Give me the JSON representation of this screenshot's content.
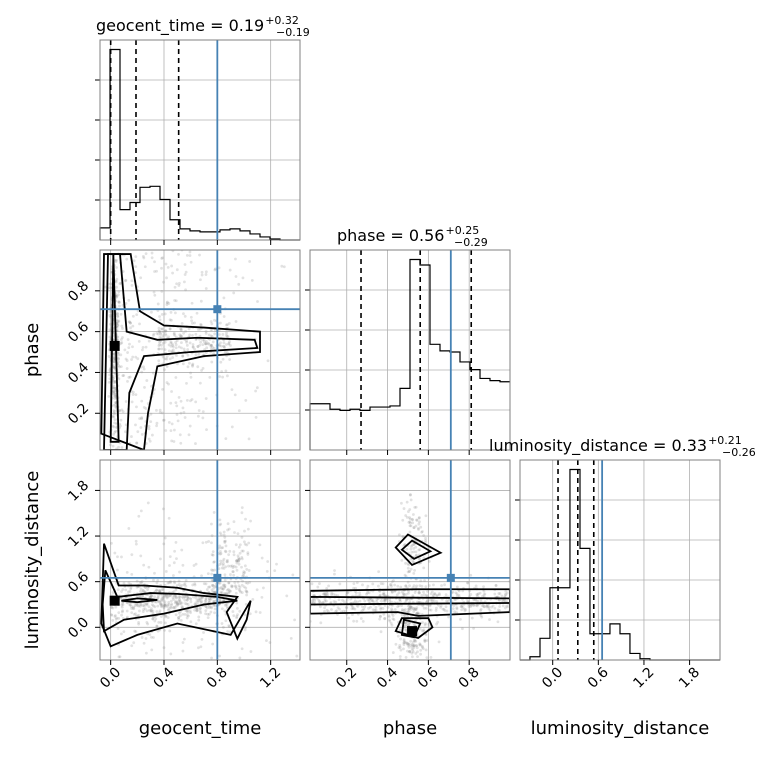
{
  "chart_data": {
    "type": "corner",
    "parameters": [
      "geocent_time",
      "phase",
      "luminosity_distance"
    ],
    "axis_labels": [
      "geocent_time",
      "phase",
      "luminosity_distance"
    ],
    "ranges": {
      "geocent_time": [
        -0.08,
        1.42
      ],
      "phase": [
        0.02,
        1.0
      ],
      "luminosity_distance": [
        -0.43,
        2.2
      ]
    },
    "ticks": {
      "geocent_time": [
        "0.0",
        "0.4",
        "0.8",
        "1.2"
      ],
      "phase": [
        "0.2",
        "0.4",
        "0.6",
        "0.8"
      ],
      "luminosity_distance": [
        "0.0",
        "0.6",
        "1.2",
        "1.8"
      ]
    },
    "tick_values": {
      "geocent_time": [
        0.0,
        0.4,
        0.8,
        1.2
      ],
      "phase": [
        0.2,
        0.4,
        0.6,
        0.8
      ],
      "luminosity_distance": [
        0.0,
        0.6,
        1.2,
        1.8
      ]
    },
    "titles": [
      {
        "param": "geocent_time",
        "text": "geocent_time = 0.19",
        "plus": "+0.32",
        "minus": "−0.19"
      },
      {
        "param": "phase",
        "text": "phase = 0.56",
        "plus": "+0.25",
        "minus": "−0.29"
      },
      {
        "param": "luminosity_distance",
        "text": "luminosity_distance = 0.33",
        "plus": "+0.21",
        "minus": "−0.26"
      }
    ],
    "truths": {
      "geocent_time": 0.8,
      "phase": 0.71,
      "luminosity_distance": 0.65
    },
    "quantiles": {
      "geocent_time": [
        0.0,
        0.19,
        0.51
      ],
      "phase": [
        0.27,
        0.56,
        0.81
      ],
      "luminosity_distance": [
        0.07,
        0.33,
        0.54
      ]
    },
    "histograms": {
      "geocent_time": {
        "bin_edges": [
          -0.08,
          -0.005,
          0.07,
          0.145,
          0.22,
          0.295,
          0.37,
          0.445,
          0.52,
          0.595,
          0.67,
          0.745,
          0.82,
          0.895,
          0.97,
          1.045,
          1.12,
          1.195,
          1.27,
          1.345,
          1.42
        ],
        "counts": [
          12,
          188,
          30,
          37,
          52,
          53,
          40,
          20,
          11,
          9,
          8,
          8,
          10,
          11,
          9,
          6,
          3,
          1,
          0,
          0
        ]
      },
      "phase": {
        "bin_edges": [
          0.02,
          0.069,
          0.118,
          0.167,
          0.216,
          0.265,
          0.314,
          0.363,
          0.412,
          0.461,
          0.51,
          0.559,
          0.608,
          0.657,
          0.706,
          0.755,
          0.804,
          0.853,
          0.902,
          0.951,
          1.0
        ],
        "counts": [
          42,
          42,
          37,
          36,
          37,
          36,
          39,
          39,
          40,
          56,
          173,
          168,
          96,
          90,
          89,
          80,
          73,
          65,
          63,
          62
        ]
      },
      "luminosity_distance": {
        "bin_edges": [
          -0.43,
          -0.299,
          -0.167,
          -0.036,
          0.096,
          0.227,
          0.359,
          0.49,
          0.622,
          0.753,
          0.885,
          1.016,
          1.148,
          1.279,
          1.411,
          1.542,
          1.674,
          1.805,
          1.937,
          2.068,
          2.2
        ],
        "counts": [
          0,
          5,
          33,
          110,
          110,
          290,
          170,
          40,
          40,
          55,
          40,
          10,
          2,
          0,
          0,
          0,
          0,
          0,
          0,
          0
        ]
      }
    },
    "density_peaks": [
      {
        "x_param": "geocent_time",
        "y_param": "phase",
        "x": 0.03,
        "y": 0.53
      },
      {
        "x_param": "geocent_time",
        "y_param": "luminosity_distance",
        "x": 0.03,
        "y": 0.35
      },
      {
        "x_param": "phase",
        "y_param": "luminosity_distance",
        "x": 0.52,
        "y": -0.05
      }
    ]
  }
}
